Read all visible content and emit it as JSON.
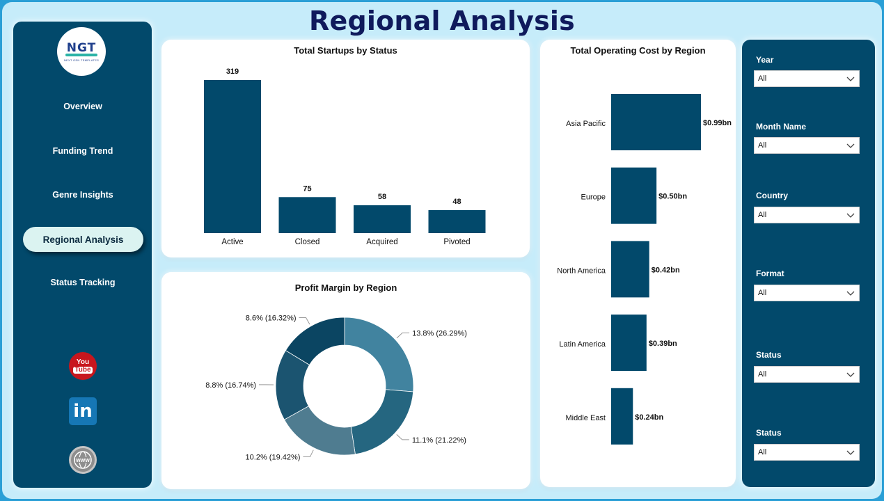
{
  "title": "Regional Analysis",
  "logo": {
    "main": "NGT",
    "sub": "NEXT GEN TEMPLATES"
  },
  "nav": [
    {
      "label": "Overview",
      "active": false
    },
    {
      "label": "Funding Trend",
      "active": false
    },
    {
      "label": "Genre Insights",
      "active": false
    },
    {
      "label": "Regional Analysis",
      "active": true
    },
    {
      "label": "Status Tracking",
      "active": false
    }
  ],
  "social": [
    {
      "icon": "youtube-icon",
      "text_top": "You",
      "text_bottom": "Tube"
    },
    {
      "icon": "linkedin-icon",
      "text": "in"
    },
    {
      "icon": "website-icon",
      "text": "WWW"
    }
  ],
  "colors": {
    "accent": "#02496b",
    "background": "#c6ecfa",
    "title": "#0f1a5c",
    "active_nav": "#dbf3f1"
  },
  "cards": {
    "startups_title": "Total Startups by Status",
    "profit_title": "Profit Margin by Region",
    "cost_title": "Total Operating Cost by Region"
  },
  "chart_data": [
    {
      "type": "bar",
      "title": "Total Startups by Status",
      "categories": [
        "Active",
        "Closed",
        "Acquired",
        "Pivoted"
      ],
      "values": [
        319,
        75,
        58,
        48
      ],
      "data_labels": [
        "319",
        "75",
        "58",
        "48"
      ],
      "color": "#02496b"
    },
    {
      "type": "pie",
      "subtype": "donut",
      "title": "Profit Margin by Region",
      "slices": [
        {
          "value": 26.29,
          "label": "13.8% (26.29%)",
          "color": "#41839f"
        },
        {
          "value": 21.22,
          "label": "11.1% (21.22%)",
          "color": "#256680"
        },
        {
          "value": 19.42,
          "label": "10.2% (19.42%)",
          "color": "#4f7c90"
        },
        {
          "value": 16.74,
          "label": "8.8% (16.74%)",
          "color": "#1b5470"
        },
        {
          "value": 16.32,
          "label": "8.6% (16.32%)",
          "color": "#0b4562"
        }
      ]
    },
    {
      "type": "bar",
      "orientation": "horizontal",
      "title": "Total Operating Cost by Region",
      "categories": [
        "Asia Pacific",
        "Europe",
        "North America",
        "Latin America",
        "Middle East"
      ],
      "values": [
        0.99,
        0.5,
        0.42,
        0.39,
        0.24
      ],
      "data_labels": [
        "$0.99bn",
        "$0.50bn",
        "$0.42bn",
        "$0.39bn",
        "$0.24bn"
      ],
      "unit": "bn",
      "color": "#02496b"
    }
  ],
  "filters": [
    {
      "label": "Year",
      "value": "All"
    },
    {
      "label": "Month Name",
      "value": "All"
    },
    {
      "label": "Country",
      "value": "All"
    },
    {
      "label": "Format",
      "value": "All"
    },
    {
      "label": "Status",
      "value": "All"
    },
    {
      "label": "Status",
      "value": "All"
    }
  ]
}
